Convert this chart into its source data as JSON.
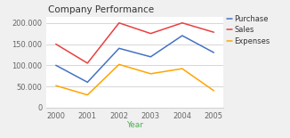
{
  "title": "Company Performance",
  "xlabel": "Year",
  "years": [
    2000,
    2001,
    2002,
    2003,
    2004,
    2005
  ],
  "series": {
    "Purchase": {
      "values": [
        100000,
        60000,
        140000,
        120000,
        170000,
        130000
      ],
      "color": "#4472C4"
    },
    "Sales": {
      "values": [
        150000,
        105000,
        200000,
        175000,
        200000,
        178000
      ],
      "color": "#E84040"
    },
    "Expenses": {
      "values": [
        52000,
        30000,
        102000,
        80000,
        92000,
        40000
      ],
      "color": "#FFA500"
    }
  },
  "ylim": [
    0,
    215000
  ],
  "yticks": [
    0,
    50000,
    100000,
    150000,
    200000
  ],
  "background_color": "#f0f0f0",
  "plot_bg_color": "#ffffff",
  "grid_color": "#d0d0d0",
  "title_fontsize": 7.5,
  "axis_label_fontsize": 6.5,
  "tick_fontsize": 6,
  "legend_fontsize": 6,
  "xlabel_color": "#4CAF50",
  "line_width": 1.1
}
